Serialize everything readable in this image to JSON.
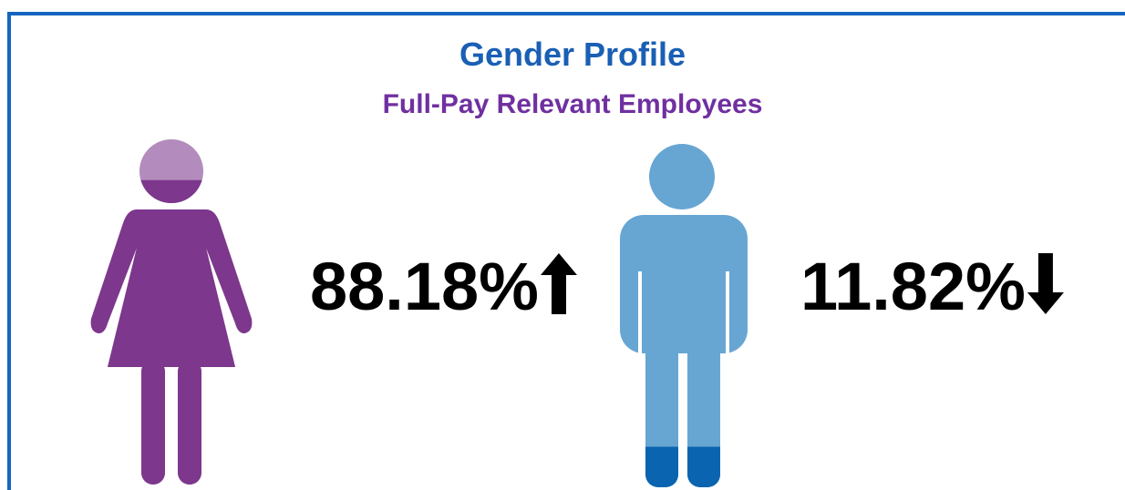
{
  "chart_data": {
    "type": "pictogram",
    "title": "Gender Profile",
    "subtitle": "Full-Pay Relevant Employees",
    "values": [
      88.18,
      11.82
    ],
    "value_labels": [
      "88.18%",
      "11.82%"
    ],
    "trend": [
      "up",
      "down"
    ],
    "colors": [
      "#7d378c",
      "#0a64b0"
    ],
    "light_colors": [
      "#b38bbd",
      "#67a6d3"
    ],
    "title_color": "#1a5fb4",
    "subtitle_color": "#7030a0"
  }
}
